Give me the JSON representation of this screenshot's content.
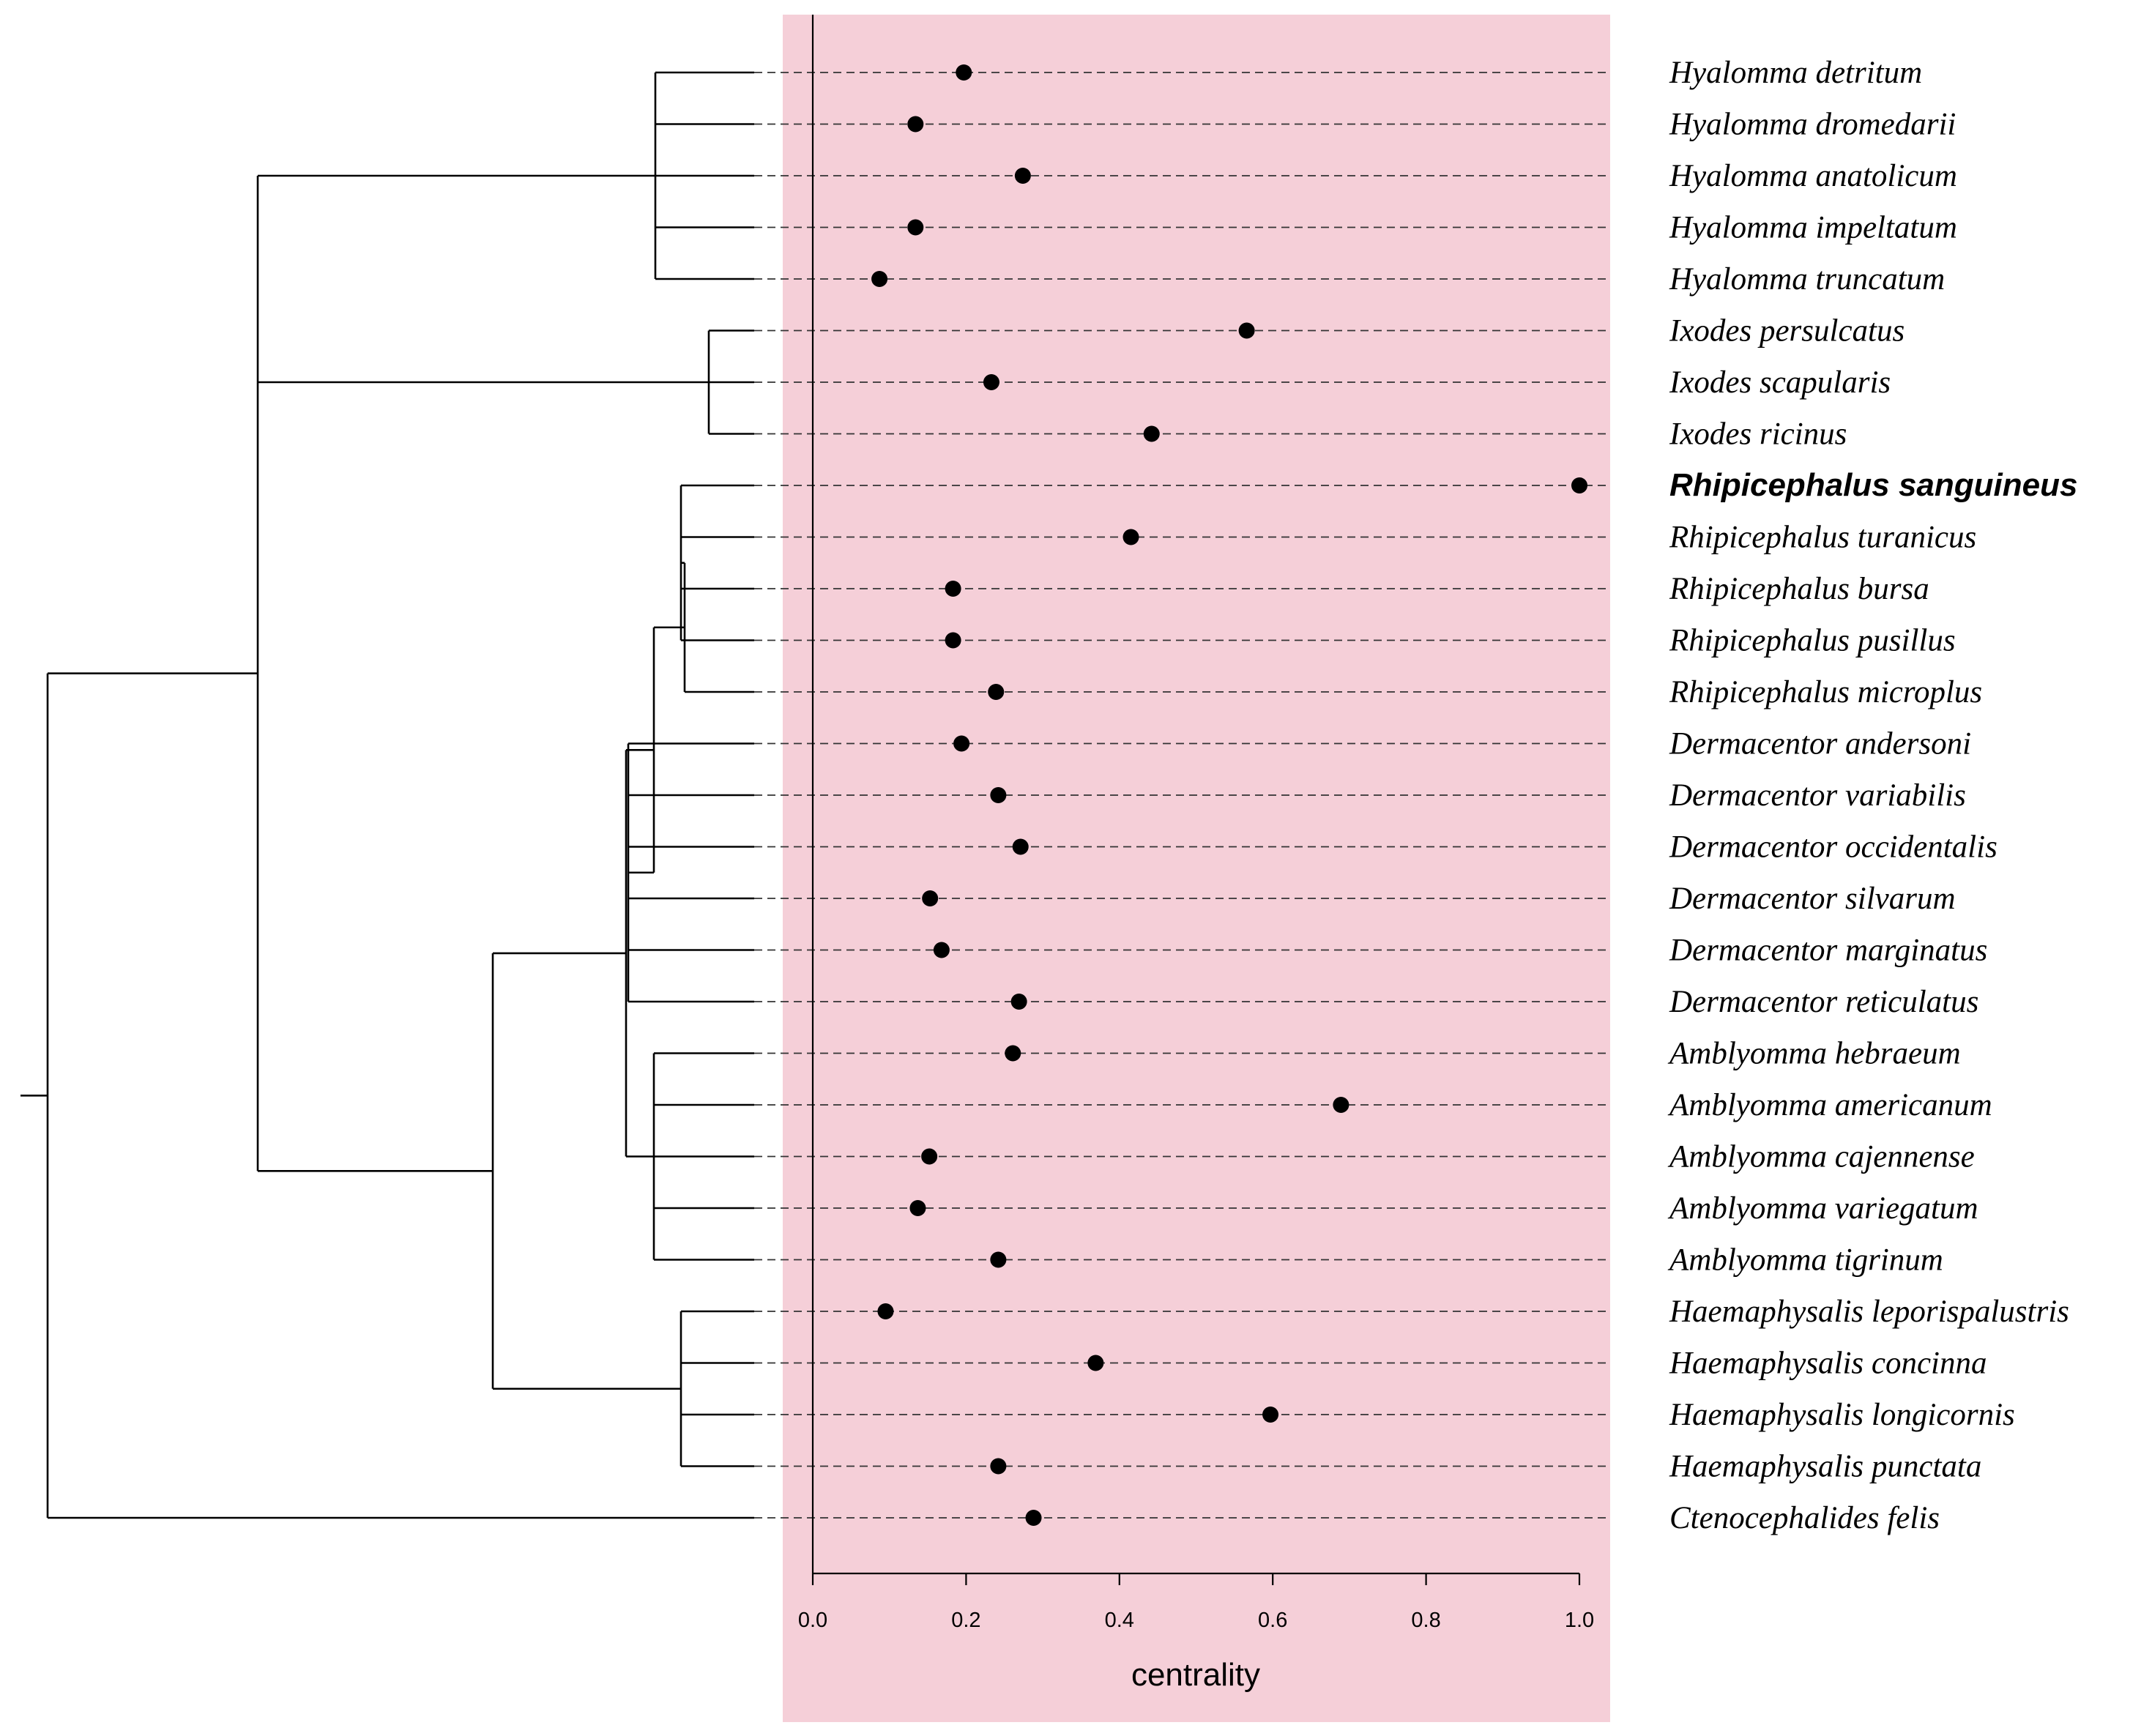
{
  "chart_data": {
    "type": "scatter",
    "title": "",
    "xlabel": "centrality",
    "ylabel": "",
    "xlim": [
      0,
      1
    ],
    "x_ticks": [
      "0.0",
      "0.2",
      "0.4",
      "0.6",
      "0.8",
      "1.0"
    ],
    "panel_color": "#f5cfd8",
    "point_color": "#000000",
    "highlighted_species": "Rhipicephalus sanguineus",
    "species": [
      {
        "name": "Hyalomma detritum",
        "centrality": 0.197
      },
      {
        "name": "Hyalomma dromedarii",
        "centrality": 0.134
      },
      {
        "name": "Hyalomma anatolicum",
        "centrality": 0.274
      },
      {
        "name": "Hyalomma impeltatum",
        "centrality": 0.134
      },
      {
        "name": "Hyalomma truncatum",
        "centrality": 0.087
      },
      {
        "name": "Ixodes persulcatus",
        "centrality": 0.566
      },
      {
        "name": "Ixodes scapularis",
        "centrality": 0.233
      },
      {
        "name": "Ixodes ricinus",
        "centrality": 0.442
      },
      {
        "name": "Rhipicephalus sanguineus",
        "centrality": 1.0
      },
      {
        "name": "Rhipicephalus turanicus",
        "centrality": 0.415
      },
      {
        "name": "Rhipicephalus bursa",
        "centrality": 0.183
      },
      {
        "name": "Rhipicephalus pusillus",
        "centrality": 0.183
      },
      {
        "name": "Rhipicephalus microplus",
        "centrality": 0.239
      },
      {
        "name": "Dermacentor andersoni",
        "centrality": 0.194
      },
      {
        "name": "Dermacentor variabilis",
        "centrality": 0.242
      },
      {
        "name": "Dermacentor occidentalis",
        "centrality": 0.271
      },
      {
        "name": "Dermacentor silvarum",
        "centrality": 0.153
      },
      {
        "name": "Dermacentor marginatus",
        "centrality": 0.168
      },
      {
        "name": "Dermacentor reticulatus",
        "centrality": 0.269
      },
      {
        "name": "Amblyomma hebraeum",
        "centrality": 0.261
      },
      {
        "name": "Amblyomma americanum",
        "centrality": 0.689
      },
      {
        "name": "Amblyomma cajennense",
        "centrality": 0.152
      },
      {
        "name": "Amblyomma variegatum",
        "centrality": 0.137
      },
      {
        "name": "Amblyomma tigrinum",
        "centrality": 0.242
      },
      {
        "name": "Haemaphysalis leporispalustris",
        "centrality": 0.095
      },
      {
        "name": "Haemaphysalis concinna",
        "centrality": 0.369
      },
      {
        "name": "Haemaphysalis longicornis",
        "centrality": 0.597
      },
      {
        "name": "Haemaphysalis punctata",
        "centrality": 0.242
      },
      {
        "name": "Ctenocephalides felis",
        "centrality": 0.288
      }
    ],
    "tree_newick": "((((Hyalomma detritum,Hyalomma dromedarii,Hyalomma anatolicum,Hyalomma impeltatum,Hyalomma truncatum),(Ixodes persulcatus,Ixodes scapularis,Ixodes ricinus),((((((Rhipicephalus sanguineus,Rhipicephalus turanicus,Rhipicephalus bursa,Rhipicephalus pusillus),Rhipicephalus microplus),(Dermacentor andersoni,Dermacentor variabilis,Dermacentor occidentalis,Dermacentor silvarum,Dermacentor marginatus,Dermacentor reticulatus)),(Amblyomma hebraeum,Amblyomma americanum,Amblyomma cajennense,Amblyomma variegatum,Amblyomma tigrinum)),(Haemaphysalis leporispalustris,Haemaphysalis concinna,Haemaphysalis longicornis,Haemaphysalis punctata)))),Ctenocephalides felis)"
  }
}
